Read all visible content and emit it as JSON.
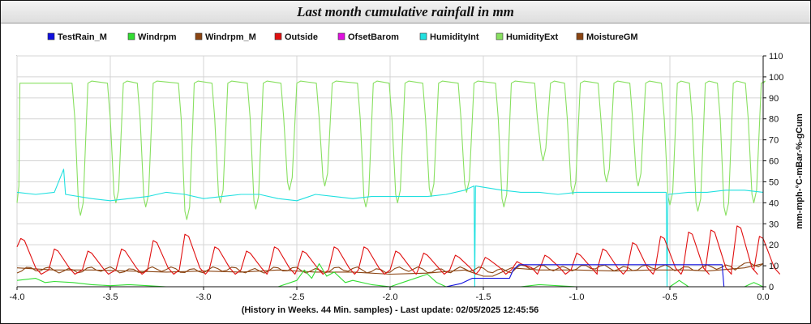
{
  "chart_data": {
    "type": "line",
    "title": "Last month cumulative rainfall in mm",
    "xlabel": "(History in Weeks. 44 Min. samples) - Last update: 02/05/2025 12:45:56",
    "ylabel": "mm-mph-°C-mBar-%-gCum",
    "xlim": [
      -4.0,
      0.0
    ],
    "ylim": [
      0,
      110
    ],
    "x_ticks": [
      "-4.0",
      "-3.5",
      "-3.0",
      "-2.5",
      "-2.0",
      "-1.5",
      "-1.0",
      "-0.5",
      "0.0"
    ],
    "y_ticks": [
      "0",
      "10",
      "20",
      "30",
      "40",
      "50",
      "60",
      "70",
      "80",
      "90",
      "100",
      "110"
    ],
    "grid": true,
    "legend_position": "top",
    "series": [
      {
        "name": "TestRain_M",
        "color": "#1010e0",
        "points": [
          [
            -4.0,
            0
          ],
          [
            -2.0,
            0
          ],
          [
            -1.7,
            0
          ],
          [
            -1.62,
            1.5
          ],
          [
            -1.56,
            4
          ],
          [
            -1.36,
            4
          ],
          [
            -1.34,
            8
          ],
          [
            -1.31,
            10.5
          ],
          [
            -1.0,
            10.5
          ],
          [
            -0.5,
            10.5
          ],
          [
            -0.22,
            10.5
          ],
          [
            -0.21,
            0
          ],
          [
            0,
            0
          ]
        ]
      },
      {
        "name": "Windrpm",
        "color": "#33dd33",
        "points": [
          [
            -4.0,
            3
          ],
          [
            -3.9,
            4
          ],
          [
            -3.85,
            2
          ],
          [
            -3.8,
            2.5
          ],
          [
            -3.7,
            2
          ],
          [
            -3.6,
            1
          ],
          [
            -3.5,
            0.5
          ],
          [
            -3.4,
            1
          ],
          [
            -3.3,
            0.5
          ],
          [
            -3.2,
            0
          ],
          [
            -2.6,
            0
          ],
          [
            -2.5,
            3
          ],
          [
            -2.46,
            8
          ],
          [
            -2.42,
            4
          ],
          [
            -2.38,
            11
          ],
          [
            -2.34,
            5
          ],
          [
            -2.3,
            7
          ],
          [
            -2.24,
            2
          ],
          [
            -2.2,
            3
          ],
          [
            -2.1,
            1
          ],
          [
            -2.0,
            0
          ],
          [
            -1.9,
            3
          ],
          [
            -1.8,
            6
          ],
          [
            -1.75,
            2
          ],
          [
            -1.7,
            0
          ],
          [
            -1.3,
            0
          ],
          [
            -1.2,
            1
          ],
          [
            -1.0,
            0
          ],
          [
            -0.5,
            0
          ],
          [
            -0.45,
            3
          ],
          [
            -0.4,
            0
          ],
          [
            -0.1,
            0
          ],
          [
            -0.05,
            2
          ],
          [
            0,
            0
          ]
        ]
      },
      {
        "name": "Windrpm_M",
        "color": "#8b4513",
        "points": [
          [
            -4.0,
            9
          ],
          [
            -3.8,
            8
          ],
          [
            -3.6,
            8
          ],
          [
            -3.4,
            7.5
          ],
          [
            -3.2,
            7
          ],
          [
            -3.0,
            7.5
          ],
          [
            -2.8,
            7
          ],
          [
            -2.6,
            8
          ],
          [
            -2.4,
            7
          ],
          [
            -2.2,
            7
          ],
          [
            -2.0,
            6
          ],
          [
            -1.8,
            6.5
          ],
          [
            -1.6,
            8
          ],
          [
            -1.5,
            5
          ],
          [
            -1.45,
            5
          ],
          [
            -1.35,
            9
          ],
          [
            -1.2,
            8
          ],
          [
            -1.0,
            8
          ],
          [
            -0.8,
            7.5
          ],
          [
            -0.6,
            8
          ],
          [
            -0.4,
            8
          ],
          [
            -0.3,
            7.5
          ],
          [
            -0.1,
            9
          ],
          [
            0,
            11
          ]
        ]
      },
      {
        "name": "Outside",
        "color": "#e01010",
        "points": []
      },
      {
        "name": "OfsetBarom",
        "color": "#e010e0",
        "points": []
      },
      {
        "name": "HumidityInt",
        "color": "#20e0e0",
        "points": [
          [
            -4.0,
            45
          ],
          [
            -3.9,
            44
          ],
          [
            -3.8,
            45
          ],
          [
            -3.75,
            56
          ],
          [
            -3.74,
            44
          ],
          [
            -3.6,
            42
          ],
          [
            -3.5,
            41
          ],
          [
            -3.4,
            42
          ],
          [
            -3.3,
            43
          ],
          [
            -3.2,
            45
          ],
          [
            -3.1,
            44
          ],
          [
            -3.0,
            42
          ],
          [
            -2.9,
            43
          ],
          [
            -2.8,
            44
          ],
          [
            -2.7,
            44
          ],
          [
            -2.6,
            42
          ],
          [
            -2.5,
            41
          ],
          [
            -2.4,
            44
          ],
          [
            -2.3,
            43
          ],
          [
            -2.2,
            42
          ],
          [
            -2.1,
            43
          ],
          [
            -2.0,
            43
          ],
          [
            -1.9,
            43
          ],
          [
            -1.8,
            43
          ],
          [
            -1.7,
            44
          ],
          [
            -1.6,
            46
          ],
          [
            -1.55,
            48
          ],
          [
            -1.546,
            0
          ],
          [
            -1.542,
            48
          ],
          [
            -1.4,
            46
          ],
          [
            -1.3,
            45
          ],
          [
            -1.2,
            45
          ],
          [
            -1.1,
            44
          ],
          [
            -1.0,
            45
          ],
          [
            -0.9,
            45
          ],
          [
            -0.8,
            45
          ],
          [
            -0.7,
            45
          ],
          [
            -0.6,
            45
          ],
          [
            -0.52,
            45
          ],
          [
            -0.515,
            0
          ],
          [
            -0.51,
            44
          ],
          [
            -0.4,
            45
          ],
          [
            -0.3,
            45
          ],
          [
            -0.2,
            46
          ],
          [
            -0.1,
            46
          ],
          [
            0,
            45
          ]
        ]
      },
      {
        "name": "HumidityExt",
        "color": "#88e060",
        "points": []
      },
      {
        "name": "MoistureGM",
        "color": "#8b4513",
        "points": []
      }
    ]
  }
}
